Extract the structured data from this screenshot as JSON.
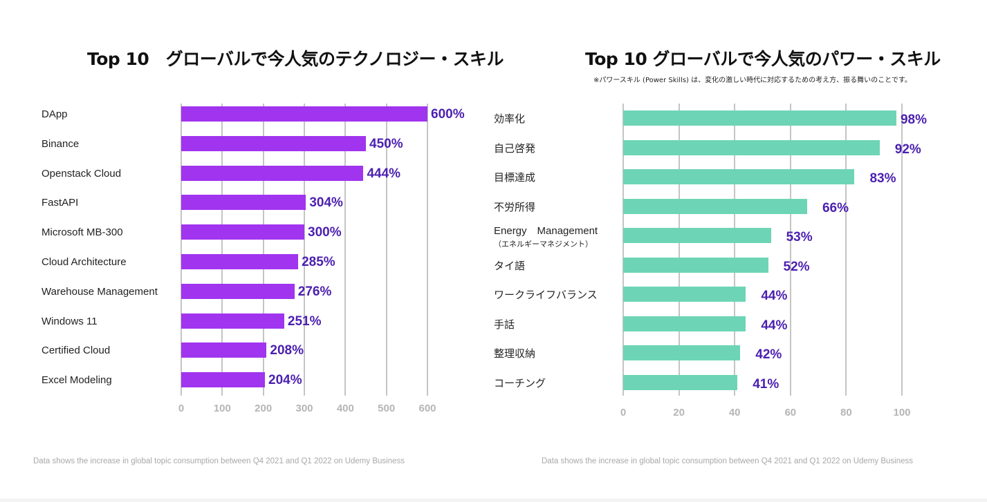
{
  "chart_data": [
    {
      "type": "bar",
      "orientation": "horizontal",
      "title": "Top 10　グローバルで今人気のテクノロジー・スキル",
      "categories": [
        "DApp",
        "Binance",
        "Openstack Cloud",
        "FastAPI",
        "Microsoft MB-300",
        "Cloud Architecture",
        "Warehouse Management",
        "Windows 11",
        "Certified Cloud",
        "Excel Modeling"
      ],
      "values": [
        600,
        450,
        444,
        304,
        300,
        285,
        276,
        251,
        208,
        204
      ],
      "value_labels": [
        "600%",
        "450%",
        "444%",
        "304%",
        "300%",
        "285%",
        "276%",
        "251%",
        "208%",
        "204%"
      ],
      "xlabel": "",
      "ylabel": "",
      "xlim": [
        0,
        600
      ],
      "xticks": [
        "0",
        "100",
        "200",
        "300",
        "400",
        "500",
        "600"
      ],
      "grid": true,
      "bar_color": "#a034ef",
      "label_color": "#4b1fb0",
      "footnote": "Data shows the increase in global topic consumption between Q4 2021 and Q1 2022 on Udemy Business"
    },
    {
      "type": "bar",
      "orientation": "horizontal",
      "title": "Top 10 グローバルで今人気のパワー・スキル",
      "subtitle": "※パワースキル (Power Skills) は、変化の激しい時代に対応するための考え方、振る舞いのことです。",
      "categories": [
        "効率化",
        "自己啓発",
        "目標達成",
        "不労所得",
        "Energy　Management",
        "タイ語",
        "ワークライフバランス",
        "手話",
        "整理収納",
        "コーチング"
      ],
      "category_sublabels": [
        "",
        "",
        "",
        "",
        "（エネルギーマネジメント）",
        "",
        "",
        "",
        "",
        ""
      ],
      "values": [
        98,
        92,
        83,
        66,
        53,
        52,
        44,
        44,
        42,
        41
      ],
      "value_labels": [
        "98%",
        "92%",
        "83%",
        "66%",
        "53%",
        "52%",
        "44%",
        "44%",
        "42%",
        "41%"
      ],
      "xlabel": "",
      "ylabel": "",
      "xlim": [
        0,
        100
      ],
      "xticks": [
        "0",
        "20",
        "40",
        "60",
        "80",
        "100"
      ],
      "grid": true,
      "bar_color": "#6dd5b6",
      "label_color": "#4b1fb0",
      "footnote": "Data shows the increase in global topic consumption between Q4 2021 and Q1 2022 on Udemy Business"
    }
  ]
}
